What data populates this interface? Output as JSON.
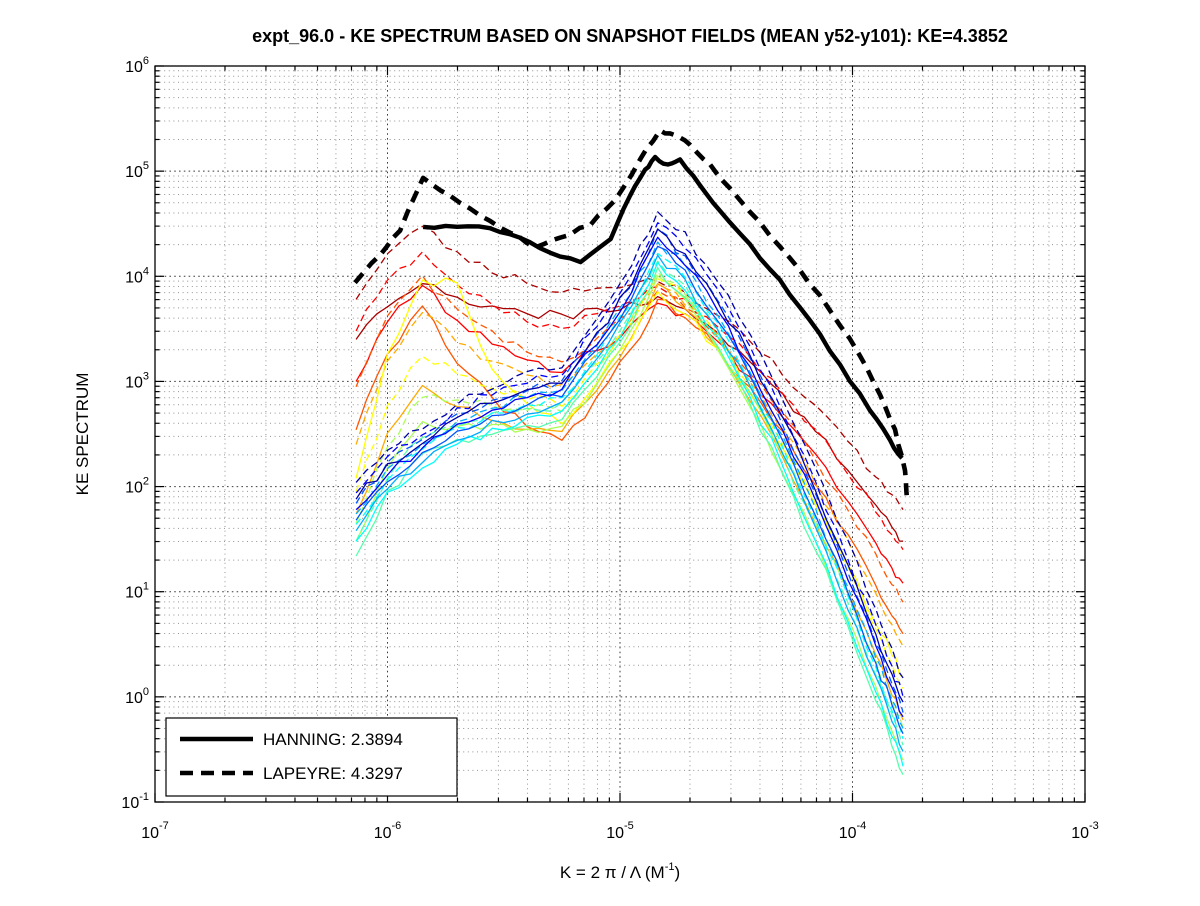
{
  "figure": {
    "background": "#ffffff"
  },
  "chart_data": {
    "type": "line",
    "title": "expt_96.0 - KE SPECTRUM BASED ON SNAPSHOT FIELDS (MEAN y52-y101): KE=4.3852",
    "ylabel": "KE SPECTRUM",
    "xlabel": {
      "main": "K = 2 π / Λ  (M",
      "sup": "-1",
      "close": ")"
    },
    "xscale": "log",
    "yscale": "log",
    "xlim": [
      1e-07,
      0.001
    ],
    "ylim": [
      0.1,
      1000000
    ],
    "grid": {
      "major": true,
      "minor": true
    },
    "tick_base": "10",
    "x_tick_exponents": [
      "-7",
      "-6",
      "-5",
      "-4",
      "-3"
    ],
    "y_tick_exponents": [
      "6",
      "5",
      "4",
      "3",
      "2",
      "1",
      "0",
      "-1"
    ],
    "legend": {
      "position": "lower-left",
      "entries": [
        {
          "label": "HANNING: 2.3894",
          "dash": false,
          "color": "#000000"
        },
        {
          "label": "LAPEYRE: 4.3297",
          "dash": true,
          "color": "#000000"
        }
      ]
    },
    "hanning_total_ke": 2.3894,
    "lapeyre_total_ke": 4.3297,
    "mean_ke": 4.3852,
    "k_grid_log10": [
      -6.135,
      -6.0,
      -5.85,
      -5.7,
      -5.55,
      -5.4,
      -5.25,
      -5.1,
      -4.95,
      -4.838,
      -4.72,
      -4.58,
      -4.44,
      -4.3,
      -4.16,
      -4.02,
      -3.9,
      -3.83,
      -3.7825
    ],
    "series": [
      {
        "id": "snapshot-solid-12",
        "color": "#AA0000",
        "dash": false,
        "width": 1.3,
        "jitter": 0.05,
        "v_log10": [
          3.4,
          3.73,
          3.93,
          3.81,
          3.72,
          3.66,
          3.62,
          3.68,
          3.74,
          3.81,
          3.69,
          3.47,
          3.19,
          2.87,
          2.53,
          2.16,
          1.82,
          1.62,
          1.48
        ]
      },
      {
        "id": "snapshot-dashed-12",
        "color": "#AA0000",
        "dash": true,
        "width": 1.3,
        "jitter": 0.05,
        "v_log10": [
          3.78,
          4.2,
          4.46,
          4.22,
          4.05,
          3.93,
          3.85,
          3.88,
          3.92,
          3.95,
          3.84,
          3.63,
          3.37,
          3.08,
          2.76,
          2.41,
          2.1,
          1.91,
          1.78
        ]
      },
      {
        "id": "snapshot-solid-11",
        "color": "#FF0000",
        "dash": false,
        "width": 1.3,
        "jitter": 0.05,
        "v_log10": [
          3.0,
          3.56,
          3.9,
          3.58,
          3.36,
          3.2,
          3.1,
          3.3,
          3.53,
          3.76,
          3.62,
          3.36,
          3.04,
          2.68,
          2.29,
          1.86,
          1.47,
          1.24,
          1.08
        ]
      },
      {
        "id": "snapshot-dashed-11",
        "color": "#FF0000",
        "dash": true,
        "width": 1.3,
        "jitter": 0.05,
        "v_log10": [
          3.48,
          3.95,
          4.23,
          3.94,
          3.74,
          3.59,
          3.5,
          3.62,
          3.76,
          3.9,
          3.77,
          3.53,
          3.23,
          2.89,
          2.53,
          2.13,
          1.77,
          1.55,
          1.4
        ]
      },
      {
        "id": "snapshot-solid-10",
        "color": "#FF5500",
        "dash": false,
        "width": 1.3,
        "jitter": 0.05,
        "v_log10": [
          2.54,
          3.26,
          3.7,
          3.19,
          2.84,
          2.59,
          2.42,
          2.83,
          3.3,
          3.78,
          3.61,
          3.31,
          2.93,
          2.5,
          2.03,
          1.53,
          1.07,
          0.79,
          0.6
        ]
      },
      {
        "id": "snapshot-dashed-10",
        "color": "#FF5500",
        "dash": true,
        "width": 1.3,
        "jitter": 0.05,
        "v_log10": [
          2.95,
          3.6,
          4.0,
          3.68,
          3.46,
          3.3,
          3.2,
          3.4,
          3.64,
          3.88,
          3.72,
          3.44,
          3.08,
          2.68,
          2.24,
          1.77,
          1.34,
          1.08,
          0.9
        ]
      },
      {
        "id": "snapshot-solid-09",
        "color": "#FFAA00",
        "dash": false,
        "width": 1.3,
        "jitter": 0.05,
        "v_log10": [
          1.74,
          2.49,
          2.95,
          2.77,
          2.65,
          2.56,
          2.5,
          2.93,
          3.43,
          3.93,
          3.71,
          3.32,
          2.82,
          2.26,
          1.65,
          0.99,
          0.39,
          0.03,
          -0.22
        ]
      },
      {
        "id": "snapshot-dashed-09",
        "color": "#FFAA00",
        "dash": true,
        "width": 1.3,
        "jitter": 0.05,
        "v_log10": [
          2.4,
          3.18,
          3.65,
          3.37,
          3.18,
          3.04,
          2.95,
          3.24,
          3.59,
          3.93,
          3.75,
          3.42,
          3.01,
          2.54,
          2.04,
          1.48,
          0.99,
          0.69,
          0.48
        ]
      },
      {
        "id": "snapshot-solid-08",
        "color": "#FFFF00",
        "dash": false,
        "width": 1.3,
        "jitter": 0.05,
        "v_log10": [
          2.08,
          3.24,
          3.95,
          3.93,
          3.1,
          2.8,
          2.6,
          2.98,
          3.41,
          3.85,
          3.66,
          3.31,
          2.87,
          2.37,
          1.84,
          1.25,
          0.72,
          0.4,
          0.18
        ]
      },
      {
        "id": "snapshot-dashed-08",
        "color": "#FFFF00",
        "dash": true,
        "width": 1.3,
        "jitter": 0.05,
        "v_log10": [
          1.95,
          2.76,
          3.26,
          3.07,
          2.94,
          2.84,
          2.78,
          3.15,
          3.57,
          4.0,
          3.8,
          3.42,
          2.95,
          2.42,
          1.85,
          1.22,
          0.66,
          0.32,
          0.08
        ]
      },
      {
        "id": "snapshot-solid-07",
        "color": "#AAFF55",
        "dash": false,
        "width": 1.3,
        "jitter": 0.05,
        "v_log10": [
          1.48,
          2.17,
          2.6,
          2.58,
          2.57,
          2.56,
          2.55,
          2.99,
          3.49,
          4.0,
          3.76,
          3.32,
          2.77,
          2.15,
          1.47,
          0.74,
          0.08,
          -0.32,
          -0.6
        ]
      },
      {
        "id": "snapshot-dashed-07",
        "color": "#AAFF55",
        "dash": true,
        "width": 1.3,
        "jitter": 0.05,
        "v_log10": [
          1.65,
          2.39,
          2.85,
          2.8,
          2.76,
          2.74,
          2.72,
          3.12,
          3.59,
          4.06,
          3.83,
          3.41,
          2.89,
          2.31,
          1.67,
          0.97,
          0.34,
          -0.04,
          -0.3
        ]
      },
      {
        "id": "snapshot-solid-06",
        "color": "#55FFAA",
        "dash": false,
        "width": 1.3,
        "jitter": 0.05,
        "v_log10": [
          1.34,
          1.94,
          2.3,
          2.43,
          2.51,
          2.58,
          2.62,
          3.05,
          3.56,
          4.06,
          3.81,
          3.35,
          2.77,
          2.13,
          1.42,
          0.66,
          -0.03,
          -0.45,
          -0.74
        ]
      },
      {
        "id": "snapshot-dashed-06",
        "color": "#55FFAA",
        "dash": true,
        "width": 1.3,
        "jitter": 0.05,
        "v_log10": [
          1.48,
          2.1,
          2.48,
          2.6,
          2.68,
          2.74,
          2.78,
          3.19,
          3.67,
          4.15,
          3.91,
          3.47,
          2.91,
          2.3,
          1.62,
          0.88,
          0.22,
          -0.18,
          -0.46
        ]
      },
      {
        "id": "snapshot-solid-05",
        "color": "#00FFFF",
        "dash": false,
        "width": 1.3,
        "jitter": 0.05,
        "v_log10": [
          1.48,
          1.93,
          2.2,
          2.4,
          2.54,
          2.64,
          2.7,
          3.13,
          3.63,
          4.13,
          3.88,
          3.42,
          2.85,
          2.2,
          1.5,
          0.73,
          0.04,
          -0.37,
          -0.66
        ]
      },
      {
        "id": "snapshot-dashed-05",
        "color": "#00FFFF",
        "dash": true,
        "width": 1.3,
        "jitter": 0.05,
        "v_log10": [
          1.64,
          2.08,
          2.35,
          2.55,
          2.69,
          2.79,
          2.85,
          3.26,
          3.75,
          4.23,
          3.99,
          3.54,
          2.99,
          2.37,
          1.69,
          0.95,
          0.28,
          -0.12,
          -0.4
        ]
      },
      {
        "id": "snapshot-solid-04",
        "color": "#00AAFF",
        "dash": false,
        "width": 1.3,
        "jitter": 0.05,
        "v_log10": [
          1.58,
          2.0,
          2.25,
          2.46,
          2.61,
          2.71,
          2.78,
          3.21,
          3.7,
          4.2,
          3.95,
          3.5,
          2.94,
          2.3,
          1.61,
          0.85,
          0.17,
          -0.24,
          -0.52
        ]
      },
      {
        "id": "snapshot-dashed-04",
        "color": "#00AAFF",
        "dash": true,
        "width": 1.3,
        "jitter": 0.05,
        "v_log10": [
          1.74,
          2.15,
          2.4,
          2.61,
          2.75,
          2.85,
          2.92,
          3.35,
          3.84,
          4.34,
          4.1,
          3.65,
          3.1,
          2.47,
          1.79,
          1.05,
          0.38,
          -0.02,
          -0.3
        ]
      },
      {
        "id": "snapshot-solid-03",
        "color": "#0055FF",
        "dash": false,
        "width": 1.3,
        "jitter": 0.05,
        "v_log10": [
          1.68,
          2.06,
          2.3,
          2.52,
          2.68,
          2.79,
          2.86,
          3.29,
          3.78,
          4.28,
          4.04,
          3.59,
          3.04,
          2.42,
          1.74,
          1.0,
          0.33,
          -0.07,
          -0.35
        ]
      },
      {
        "id": "snapshot-dashed-03",
        "color": "#0055FF",
        "dash": true,
        "width": 1.3,
        "jitter": 0.05,
        "v_log10": [
          1.84,
          2.22,
          2.45,
          2.67,
          2.82,
          2.93,
          3.0,
          3.43,
          3.93,
          4.43,
          4.19,
          3.75,
          3.2,
          2.59,
          1.92,
          1.18,
          0.52,
          0.13,
          -0.15
        ]
      },
      {
        "id": "snapshot-solid-02",
        "color": "#0000FF",
        "dash": false,
        "width": 1.3,
        "jitter": 0.05,
        "v_log10": [
          1.78,
          2.13,
          2.35,
          2.58,
          2.74,
          2.85,
          2.93,
          3.36,
          3.86,
          4.36,
          4.12,
          3.69,
          3.14,
          2.53,
          1.86,
          1.13,
          0.48,
          0.08,
          -0.19
        ]
      },
      {
        "id": "snapshot-dashed-02",
        "color": "#0000FF",
        "dash": true,
        "width": 1.3,
        "jitter": 0.05,
        "v_log10": [
          1.94,
          2.29,
          2.5,
          2.73,
          2.89,
          3.0,
          3.08,
          3.52,
          4.02,
          4.53,
          4.29,
          3.86,
          3.32,
          2.71,
          2.04,
          1.32,
          0.67,
          0.27,
          0.0
        ]
      },
      {
        "id": "snapshot-solid-01",
        "color": "#0000AA",
        "dash": false,
        "width": 1.3,
        "jitter": 0.05,
        "v_log10": [
          1.88,
          2.2,
          2.4,
          2.64,
          2.8,
          2.92,
          3.0,
          3.44,
          3.94,
          4.45,
          4.22,
          3.78,
          3.24,
          2.64,
          1.98,
          1.26,
          0.61,
          0.22,
          -0.05
        ]
      },
      {
        "id": "snapshot-dashed-01",
        "color": "#0000AA",
        "dash": true,
        "width": 1.3,
        "jitter": 0.05,
        "v_log10": [
          2.04,
          2.36,
          2.55,
          2.79,
          2.95,
          3.07,
          3.15,
          3.59,
          4.11,
          4.63,
          4.4,
          3.97,
          3.44,
          2.84,
          2.19,
          1.47,
          0.83,
          0.45,
          0.18
        ]
      },
      {
        "id": "HANNING",
        "color": "#000000",
        "dash": false,
        "width": 4.4,
        "jitter": 0.015,
        "k_log10": [
          -5.847,
          -5.7,
          -5.559,
          -5.43,
          -5.3,
          -5.17,
          -5.04,
          -4.957,
          -4.892,
          -4.849,
          -4.794,
          -4.742,
          -4.656,
          -4.57,
          -4.441,
          -4.312,
          -4.183,
          -4.054,
          -3.925,
          -3.839,
          -3.787
        ],
        "v_log10": [
          4.47,
          4.47,
          4.46,
          4.36,
          4.23,
          4.14,
          4.35,
          4.77,
          5.01,
          5.13,
          5.06,
          5.11,
          4.87,
          4.63,
          4.3,
          3.96,
          3.58,
          3.16,
          2.73,
          2.44,
          2.27
        ]
      },
      {
        "id": "LAPEYRE",
        "color": "#000000",
        "dash": true,
        "width": 4.6,
        "jitter": 0.015,
        "k_log10": [
          -6.14,
          -6.032,
          -5.946,
          -5.847,
          -5.731,
          -5.602,
          -5.473,
          -5.365,
          -5.258,
          -5.129,
          -5.021,
          -4.914,
          -4.828,
          -4.763,
          -4.699,
          -4.613,
          -4.484,
          -4.355,
          -4.226,
          -4.097,
          -3.968,
          -3.882,
          -3.817,
          -3.774,
          -3.765
        ],
        "v_log10": [
          3.94,
          4.2,
          4.44,
          4.93,
          4.77,
          4.58,
          4.42,
          4.27,
          4.36,
          4.49,
          4.72,
          5.11,
          5.39,
          5.34,
          5.25,
          5.06,
          4.72,
          4.39,
          4.06,
          3.68,
          3.25,
          2.87,
          2.54,
          2.16,
          1.87
        ]
      }
    ]
  }
}
